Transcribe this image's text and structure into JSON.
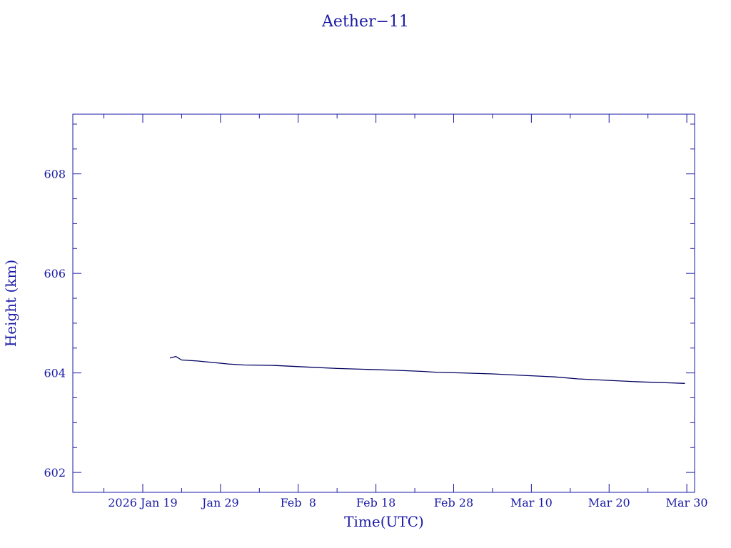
{
  "chart_data": {
    "type": "line",
    "title": "Aether−11",
    "xlabel": "Time(UTC)",
    "ylabel": "Height (km)",
    "x_axis": {
      "scale": "date",
      "range": [
        "2026-01-10",
        "2026-03-31"
      ],
      "ticks": [
        {
          "x": "2026-01-19",
          "label": "2026 Jan 19"
        },
        {
          "x": "2026-01-29",
          "label": "Jan 29"
        },
        {
          "x": "2026-02-08",
          "label": "Feb  8"
        },
        {
          "x": "2026-02-18",
          "label": "Feb 18"
        },
        {
          "x": "2026-02-28",
          "label": "Feb 28"
        },
        {
          "x": "2026-03-10",
          "label": "Mar 10"
        },
        {
          "x": "2026-03-20",
          "label": "Mar 20"
        },
        {
          "x": "2026-03-30",
          "label": "Mar 30"
        }
      ]
    },
    "y_axis": {
      "range": [
        601.6,
        609.2
      ],
      "ticks": [
        602,
        604,
        606,
        608
      ]
    },
    "grid": false,
    "colors": {
      "axis": "#1a1aa6",
      "line": "#000060",
      "background": "#ffffff"
    },
    "series": [
      {
        "values": [
          {
            "x": "2026-01-22T12:00",
            "y": 604.3
          },
          {
            "x": "2026-01-23T06:00",
            "y": 604.33
          },
          {
            "x": "2026-01-24T00:00",
            "y": 604.26
          },
          {
            "x": "2026-01-26T00:00",
            "y": 604.24
          },
          {
            "x": "2026-01-28T00:00",
            "y": 604.21
          },
          {
            "x": "2026-01-30T00:00",
            "y": 604.18
          },
          {
            "x": "2026-02-01T00:00",
            "y": 604.16
          },
          {
            "x": "2026-02-05T00:00",
            "y": 604.15
          },
          {
            "x": "2026-02-09T00:00",
            "y": 604.12
          },
          {
            "x": "2026-02-13T00:00",
            "y": 604.09
          },
          {
            "x": "2026-02-17T00:00",
            "y": 604.07
          },
          {
            "x": "2026-02-21T00:00",
            "y": 604.05
          },
          {
            "x": "2026-02-24T00:00",
            "y": 604.03
          },
          {
            "x": "2026-02-26T00:00",
            "y": 604.01
          },
          {
            "x": "2026-03-01T00:00",
            "y": 604.0
          },
          {
            "x": "2026-03-05T00:00",
            "y": 603.98
          },
          {
            "x": "2026-03-09T00:00",
            "y": 603.95
          },
          {
            "x": "2026-03-13T00:00",
            "y": 603.92
          },
          {
            "x": "2026-03-16T00:00",
            "y": 603.88
          },
          {
            "x": "2026-03-20T00:00",
            "y": 603.85
          },
          {
            "x": "2026-03-24T00:00",
            "y": 603.82
          },
          {
            "x": "2026-03-28T00:00",
            "y": 603.8
          },
          {
            "x": "2026-03-29T18:00",
            "y": 603.79
          }
        ]
      }
    ]
  }
}
